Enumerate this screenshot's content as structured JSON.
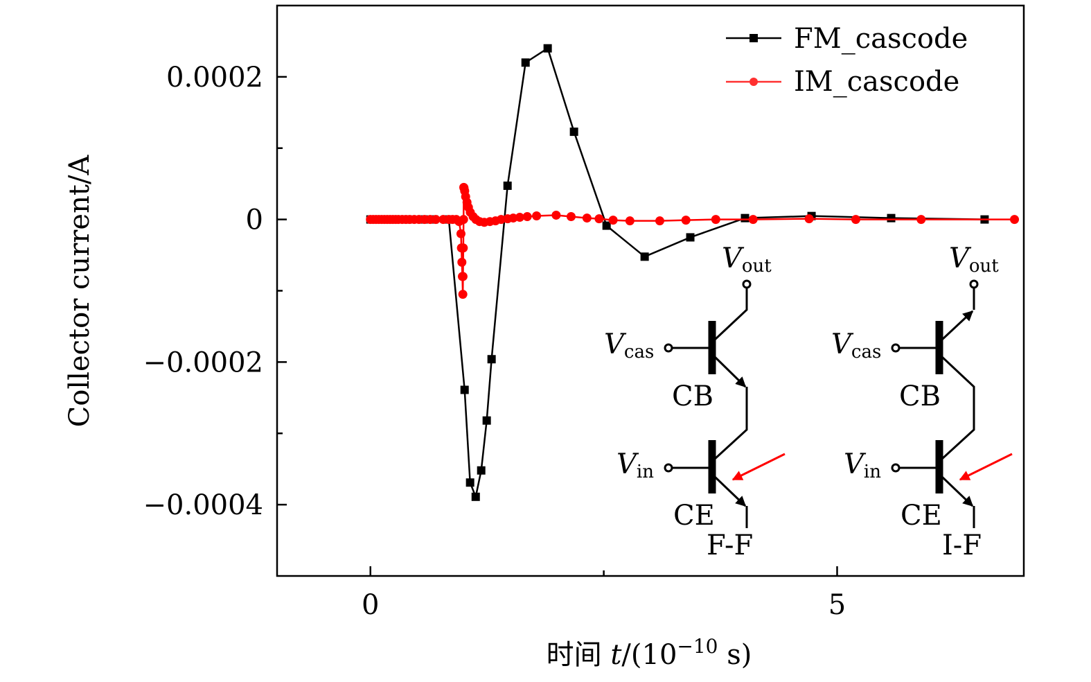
{
  "chart_data": {
    "type": "line",
    "title": "",
    "xlabel": {
      "prefix": "时间 ",
      "var": "t",
      "mid": "/(10",
      "exp": "−10",
      "suffix": " s)"
    },
    "ylabel": "Collector current/A",
    "xlim": [
      -1,
      7
    ],
    "ylim": [
      -0.0005,
      0.0003
    ],
    "x_ticks": [
      {
        "value": 0,
        "label": "0"
      },
      {
        "value": 5,
        "label": "5"
      }
    ],
    "x_minor_ticks": [
      2.5
    ],
    "y_ticks": [
      {
        "value": 0.0002,
        "label": "0.0002"
      },
      {
        "value": 0,
        "label": "0"
      },
      {
        "value": -0.0002,
        "label": "−0.0002"
      },
      {
        "value": -0.0004,
        "label": "−0.0004"
      }
    ],
    "y_minor_ticks": [
      0.0001,
      -0.0001,
      -0.0003
    ],
    "grid": false,
    "legend_position": "top-right",
    "series": [
      {
        "name": "FM_cascode",
        "color": "#000000",
        "marker": "square",
        "x": [
          0,
          0.2,
          0.4,
          0.57,
          0.68,
          0.84,
          1.009,
          1.068,
          1.128,
          1.187,
          1.246,
          1.298,
          1.469,
          1.662,
          1.899,
          2.181,
          2.53,
          2.938,
          3.427,
          4.013,
          4.726,
          5.579,
          6.58
        ],
        "y": [
          0,
          0,
          0,
          0,
          0,
          0,
          -0.000239,
          -0.000369,
          -0.000389,
          -0.000352,
          -0.000282,
          -0.000196,
          4.73e-05,
          0.00022,
          0.00024,
          0.000123,
          -8.7e-06,
          -5.22e-05,
          -2.51e-05,
          1.9e-06,
          4.8e-06,
          1.9e-06,
          0
        ]
      },
      {
        "name": "IM_cascode",
        "color": "#ff0000",
        "marker": "circle",
        "x": [
          0,
          0.03,
          0.06,
          0.09,
          0.12,
          0.15,
          0.18,
          0.21,
          0.24,
          0.27,
          0.3,
          0.34,
          0.38,
          0.42,
          0.47,
          0.52,
          0.58,
          0.64,
          0.7,
          0.78,
          0.84,
          0.88,
          0.92,
          0.95,
          0.97,
          0.975,
          0.98,
          0.985,
          0.99,
          0.992,
          0.995,
          0.998,
          1.0,
          1.003,
          1.01,
          1.02,
          1.035,
          1.05,
          1.07,
          1.1,
          1.13,
          1.17,
          1.22,
          1.28,
          1.34,
          1.4,
          1.47,
          1.53,
          1.6,
          1.68,
          1.78,
          1.99,
          2.15,
          2.32,
          2.45,
          2.6,
          2.78,
          3.1,
          3.38,
          3.7,
          4.1,
          4.7,
          5.2,
          5.9,
          6.9
        ],
        "y": [
          0,
          0,
          0,
          0,
          0,
          0,
          0,
          0,
          0,
          0,
          0,
          0,
          0,
          0,
          0,
          0,
          0,
          0,
          0,
          0,
          0,
          0,
          0,
          -3e-06,
          -2e-05,
          -4e-05,
          -6e-05,
          -8e-05,
          -0.000105,
          -8e-05,
          -4e-05,
          0,
          4.5e-05,
          4.4e-05,
          4e-05,
          3.2e-05,
          2.4e-05,
          1.7e-05,
          1e-05,
          4e-06,
          0,
          -3e-06,
          -4e-06,
          -3e-06,
          -2e-06,
          0,
          1e-06,
          2e-06,
          3e-06,
          4e-06,
          5e-06,
          6e-06,
          4e-06,
          2e-06,
          1e-06,
          -1e-06,
          -2e-06,
          -2e-06,
          -1e-06,
          0,
          0,
          1e-06,
          0,
          0,
          0
        ]
      }
    ]
  },
  "inset": {
    "left": {
      "vout": "V",
      "vout_sub": "out",
      "vcas": "V",
      "vcas_sub": "cas",
      "vin": "V",
      "vin_sub": "in",
      "top_label": "CB",
      "bottom_label": "CE",
      "caption": "F-F"
    },
    "right": {
      "vout": "V",
      "vout_sub": "out",
      "vcas": "V",
      "vcas_sub": "cas",
      "vin": "V",
      "vin_sub": "in",
      "top_label": "CB",
      "bottom_label": "CE",
      "caption": "I-F"
    },
    "arrow_color": "#ff0000"
  }
}
